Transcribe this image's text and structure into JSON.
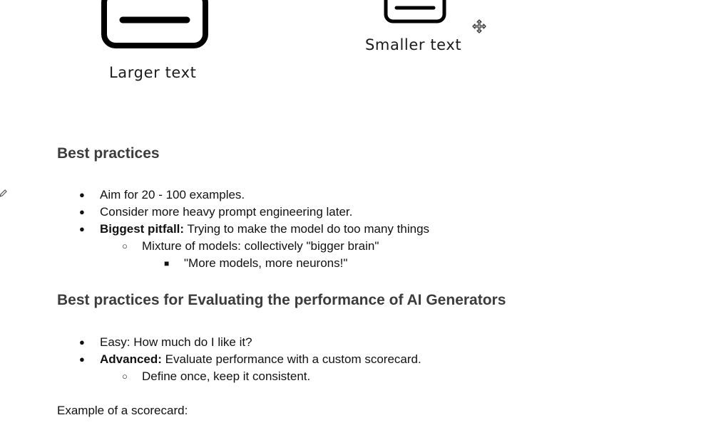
{
  "diagram": {
    "large_caption": "Larger text",
    "small_caption": "Smaller text"
  },
  "section_best_practices": {
    "heading": "Best practices",
    "items": [
      {
        "bullet": "●",
        "bold": "",
        "text": "Aim for 20 - 100 examples."
      },
      {
        "bullet": "●",
        "bold": "",
        "text": "Consider more heavy prompt engineering later."
      },
      {
        "bullet": "●",
        "bold": "Biggest pitfall:",
        "text": " Trying to make the model do too many things"
      },
      {
        "bullet": "○",
        "bold": "",
        "text": "Mixture of models: collectively \"bigger brain\""
      },
      {
        "bullet": "■",
        "bold": "",
        "text": "\"More models, more neurons!\""
      }
    ]
  },
  "section_evaluating": {
    "heading": "Best practices for Evaluating the performance of AI Generators",
    "items": [
      {
        "bullet": "●",
        "bold": "",
        "text": "Easy: How much do I like it?"
      },
      {
        "bullet": "●",
        "bold": "Advanced:",
        "text": " Evaluate performance with a custom scorecard."
      },
      {
        "bullet": "○",
        "bold": "",
        "text": "Define once, keep it consistent."
      }
    ]
  },
  "scorecard_intro": "Example of a scorecard:",
  "icons": {
    "large_box": "text-box-icon",
    "small_box": "text-box-icon",
    "cursor": "move-cursor-icon",
    "edit": "pencil-icon"
  }
}
